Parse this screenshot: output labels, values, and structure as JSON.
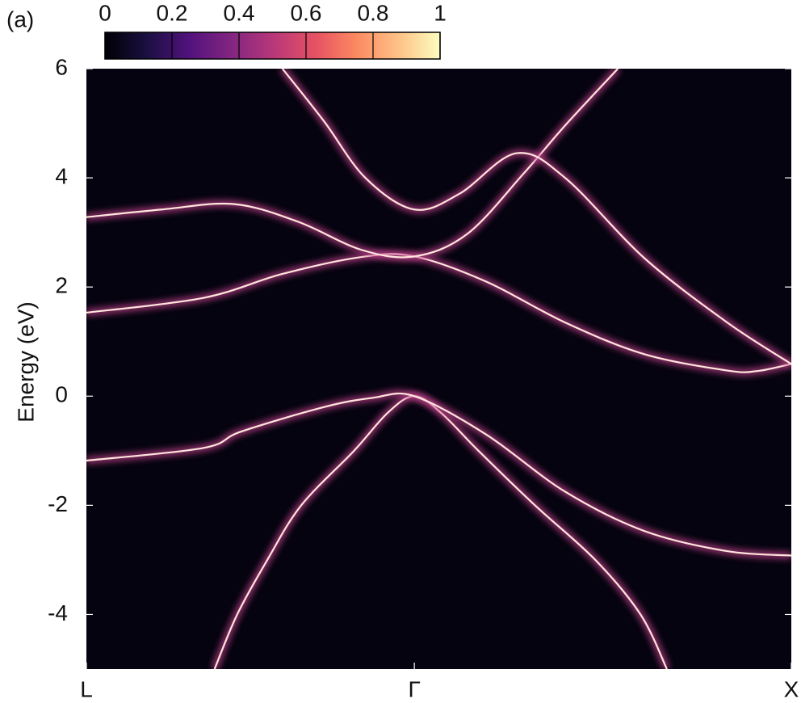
{
  "chart_data": {
    "type": "band",
    "panel_label": "(a)",
    "ylabel": "Energy (eV)",
    "xlim": [
      0,
      1.87
    ],
    "xticks": [
      {
        "value": 0,
        "label": "L"
      },
      {
        "value": 0.87,
        "label": "Γ"
      },
      {
        "value": 1.87,
        "label": "X"
      }
    ],
    "ylim": [
      -5,
      6
    ],
    "yticks": [
      6,
      4,
      2,
      0,
      -2,
      -4
    ],
    "line_color": "#ffe6dc",
    "glow_color": "#c0408a",
    "background": "#05030f",
    "colorbar": {
      "lim": [
        0,
        1
      ],
      "ticks": [
        0,
        0.2,
        0.4,
        0.6,
        0.8,
        1
      ]
    },
    "series": [
      {
        "x": [
          0.34,
          0.4,
          0.48,
          0.57,
          0.71,
          0.8,
          0.87,
          0.94,
          1.04,
          1.19,
          1.35,
          1.47,
          1.54
        ],
        "values": [
          -5,
          -4,
          -3,
          -2,
          -1,
          -0.3,
          0,
          -0.3,
          -1,
          -2,
          -3,
          -4,
          -5
        ]
      },
      {
        "x": [
          0,
          0.31,
          0.41,
          0.63,
          0.76,
          0.87,
          1.06,
          1.27,
          1.48,
          1.7,
          1.87
        ],
        "values": [
          -1.18,
          -0.95,
          -0.65,
          -0.2,
          -0.03,
          0,
          -0.7,
          -1.75,
          -2.47,
          -2.84,
          -2.92
        ]
      },
      {
        "x": [
          0,
          0.31,
          0.52,
          0.73,
          0.87,
          1.06,
          1.27,
          1.48,
          1.7,
          1.78,
          1.87
        ],
        "values": [
          1.53,
          1.8,
          2.24,
          2.55,
          2.56,
          2.1,
          1.35,
          0.77,
          0.47,
          0.46,
          0.59
        ]
      },
      {
        "x": [
          0,
          0.2,
          0.39,
          0.56,
          0.73,
          0.87,
          1.01,
          1.16,
          1.27,
          1.41
        ],
        "values": [
          3.28,
          3.42,
          3.52,
          3.2,
          2.68,
          2.56,
          2.97,
          4.08,
          4.96,
          6
        ]
      },
      {
        "x": [
          0.52,
          0.63,
          0.74,
          0.87,
          0.99,
          1.14,
          1.27,
          1.48,
          1.7,
          1.87
        ],
        "values": [
          6,
          5.04,
          4.0,
          3.42,
          3.71,
          4.45,
          4.0,
          2.53,
          1.35,
          0.59
        ]
      }
    ]
  }
}
